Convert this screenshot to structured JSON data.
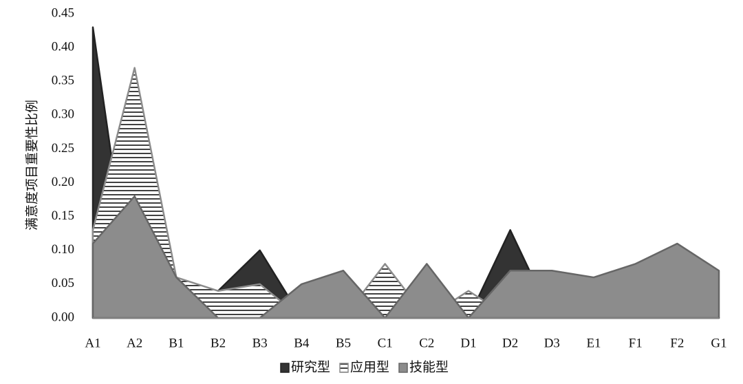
{
  "chart_data": {
    "type": "area",
    "y_label": "满意度项目重要性比例",
    "categories": [
      "A1",
      "A2",
      "B1",
      "B2",
      "B3",
      "B4",
      "B5",
      "C1",
      "C2",
      "D1",
      "D2",
      "D3",
      "E1",
      "F1",
      "F2",
      "G1"
    ],
    "series": [
      {
        "name": "研究型",
        "color": "#333333",
        "values": [
          0.43,
          0,
          0.05,
          0.04,
          0.1,
          0,
          0,
          0,
          0,
          0,
          0.13,
          0,
          0,
          0,
          0,
          0
        ]
      },
      {
        "name": "应用型",
        "color": "#ffffff",
        "pattern": "horizontal-lines",
        "values": [
          0.13,
          0.37,
          0.06,
          0.04,
          0.05,
          0,
          0,
          0.08,
          0,
          0.04,
          0,
          0,
          0,
          0,
          0,
          0
        ]
      },
      {
        "name": "技能型",
        "color": "#8c8c8c",
        "values": [
          0.11,
          0.18,
          0.06,
          0,
          0,
          0.05,
          0.07,
          0,
          0.08,
          0,
          0.07,
          0.07,
          0.06,
          0.08,
          0.11,
          0.07
        ]
      }
    ],
    "ylim": [
      0,
      0.45
    ],
    "yticks": [
      {
        "value": 0,
        "label": "0.00"
      },
      {
        "value": 0.05,
        "label": "0.05"
      },
      {
        "value": 0.1,
        "label": "0.10"
      },
      {
        "value": 0.15,
        "label": "0.15"
      },
      {
        "value": 0.2,
        "label": "0.20"
      },
      {
        "value": 0.25,
        "label": "0.25"
      },
      {
        "value": 0.3,
        "label": "0.30"
      },
      {
        "value": 0.35,
        "label": "0.35"
      },
      {
        "value": 0.4,
        "label": "0.40"
      },
      {
        "value": 0.45,
        "label": "0.45"
      }
    ],
    "legend": "bottom"
  }
}
